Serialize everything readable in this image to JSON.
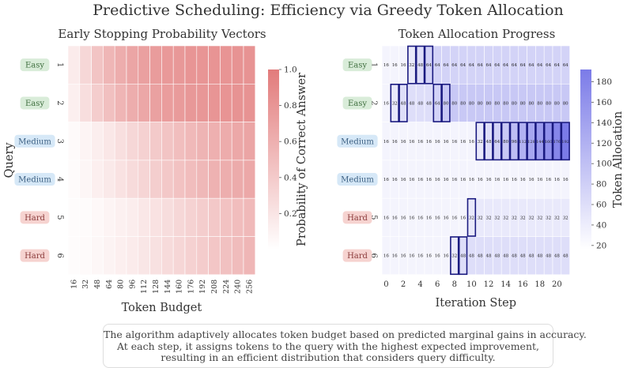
{
  "figure_title": "Predictive Scheduling: Efficiency via Greedy Token Allocation",
  "caption": [
    "The algorithm adaptively allocates token budget based on predicted marginal gains in accuracy.",
    "At each step, it assigns tokens to the query with the highest expected improvement,",
    "resulting in an efficient distribution that considers query difficulty."
  ],
  "colors": {
    "easy_badge": "#d9ecd9",
    "medium_badge": "#d6e8f7",
    "hard_badge": "#f6d3d0",
    "left_high": "#e27b7b",
    "right_high": "#7b7be8",
    "highlight_border": "#1a1a80"
  },
  "chart_data": [
    {
      "type": "heatmap",
      "title": "Early Stopping Probability Vectors",
      "xlabel": "Token Budget",
      "ylabel": "Query",
      "colorbar_label": "Probability of Correct Answer",
      "colorbar_ticks": [
        "0.2",
        "0.4",
        "0.6",
        "0.8",
        "1.0"
      ],
      "colorbar_range": [
        0,
        1
      ],
      "x_ticks": [
        "16",
        "32",
        "48",
        "64",
        "80",
        "96",
        "112",
        "128",
        "144",
        "160",
        "176",
        "192",
        "208",
        "224",
        "240",
        "256"
      ],
      "y_ticks": [
        "1",
        "2",
        "3",
        "4",
        "5",
        "6"
      ],
      "row_badges": [
        "Easy",
        "Easy",
        "Medium",
        "Medium",
        "Hard",
        "Hard"
      ],
      "values": [
        [
          0.15,
          0.3,
          0.45,
          0.55,
          0.62,
          0.68,
          0.72,
          0.75,
          0.77,
          0.78,
          0.8,
          0.8,
          0.81,
          0.81,
          0.82,
          0.82
        ],
        [
          0.12,
          0.25,
          0.38,
          0.48,
          0.56,
          0.62,
          0.67,
          0.71,
          0.74,
          0.76,
          0.78,
          0.79,
          0.8,
          0.81,
          0.82,
          0.82
        ],
        [
          0.04,
          0.08,
          0.13,
          0.18,
          0.24,
          0.3,
          0.35,
          0.4,
          0.45,
          0.49,
          0.53,
          0.57,
          0.6,
          0.63,
          0.66,
          0.68
        ],
        [
          0.03,
          0.07,
          0.12,
          0.17,
          0.22,
          0.27,
          0.32,
          0.37,
          0.42,
          0.46,
          0.5,
          0.54,
          0.58,
          0.61,
          0.64,
          0.66
        ],
        [
          0.02,
          0.03,
          0.05,
          0.08,
          0.11,
          0.14,
          0.18,
          0.22,
          0.26,
          0.3,
          0.34,
          0.38,
          0.42,
          0.46,
          0.5,
          0.53
        ],
        [
          0.02,
          0.04,
          0.06,
          0.09,
          0.12,
          0.15,
          0.19,
          0.23,
          0.27,
          0.31,
          0.35,
          0.39,
          0.43,
          0.47,
          0.51,
          0.55
        ]
      ]
    },
    {
      "type": "heatmap",
      "title": "Token Allocation Progress",
      "xlabel": "Iteration Step",
      "colorbar_label": "Token Allocation",
      "colorbar_ticks": [
        "20",
        "40",
        "60",
        "80",
        "100",
        "120",
        "140",
        "160",
        "180"
      ],
      "colorbar_range": [
        16,
        192
      ],
      "x_ticks": [
        "0",
        "2",
        "4",
        "6",
        "8",
        "10",
        "12",
        "14",
        "16",
        "18",
        "20"
      ],
      "y_ticks": [
        "1",
        "2",
        "3",
        "4",
        "5",
        "6"
      ],
      "row_badges": [
        "Easy",
        "Easy",
        "Medium",
        "Medium",
        "Hard",
        "Hard"
      ],
      "values": [
        [
          16,
          16,
          16,
          32,
          48,
          64,
          64,
          64,
          64,
          64,
          64,
          64,
          64,
          64,
          64,
          64,
          64,
          64,
          64,
          64,
          64,
          64
        ],
        [
          16,
          32,
          48,
          48,
          48,
          48,
          64,
          80,
          80,
          80,
          80,
          80,
          80,
          80,
          80,
          80,
          80,
          80,
          80,
          80,
          80,
          80
        ],
        [
          16,
          16,
          16,
          16,
          16,
          16,
          16,
          16,
          16,
          16,
          16,
          32,
          48,
          64,
          80,
          96,
          112,
          128,
          144,
          160,
          176,
          192
        ],
        [
          16,
          16,
          16,
          16,
          16,
          16,
          16,
          16,
          16,
          16,
          16,
          16,
          16,
          16,
          16,
          16,
          16,
          16,
          16,
          16,
          16,
          16
        ],
        [
          16,
          16,
          16,
          16,
          16,
          16,
          16,
          16,
          16,
          16,
          32,
          32,
          32,
          32,
          32,
          32,
          32,
          32,
          32,
          32,
          32,
          32
        ],
        [
          16,
          16,
          16,
          16,
          16,
          16,
          16,
          16,
          32,
          48,
          48,
          48,
          48,
          48,
          48,
          48,
          48,
          48,
          48,
          48,
          48,
          48
        ]
      ],
      "highlighted_cells": [
        [
          0,
          3
        ],
        [
          0,
          4
        ],
        [
          0,
          5
        ],
        [
          1,
          1
        ],
        [
          1,
          2
        ],
        [
          1,
          6
        ],
        [
          1,
          7
        ],
        [
          2,
          11
        ],
        [
          2,
          12
        ],
        [
          2,
          13
        ],
        [
          2,
          14
        ],
        [
          2,
          15
        ],
        [
          2,
          16
        ],
        [
          2,
          17
        ],
        [
          2,
          18
        ],
        [
          2,
          19
        ],
        [
          2,
          20
        ],
        [
          2,
          21
        ],
        [
          4,
          10
        ],
        [
          5,
          8
        ],
        [
          5,
          9
        ]
      ]
    }
  ]
}
